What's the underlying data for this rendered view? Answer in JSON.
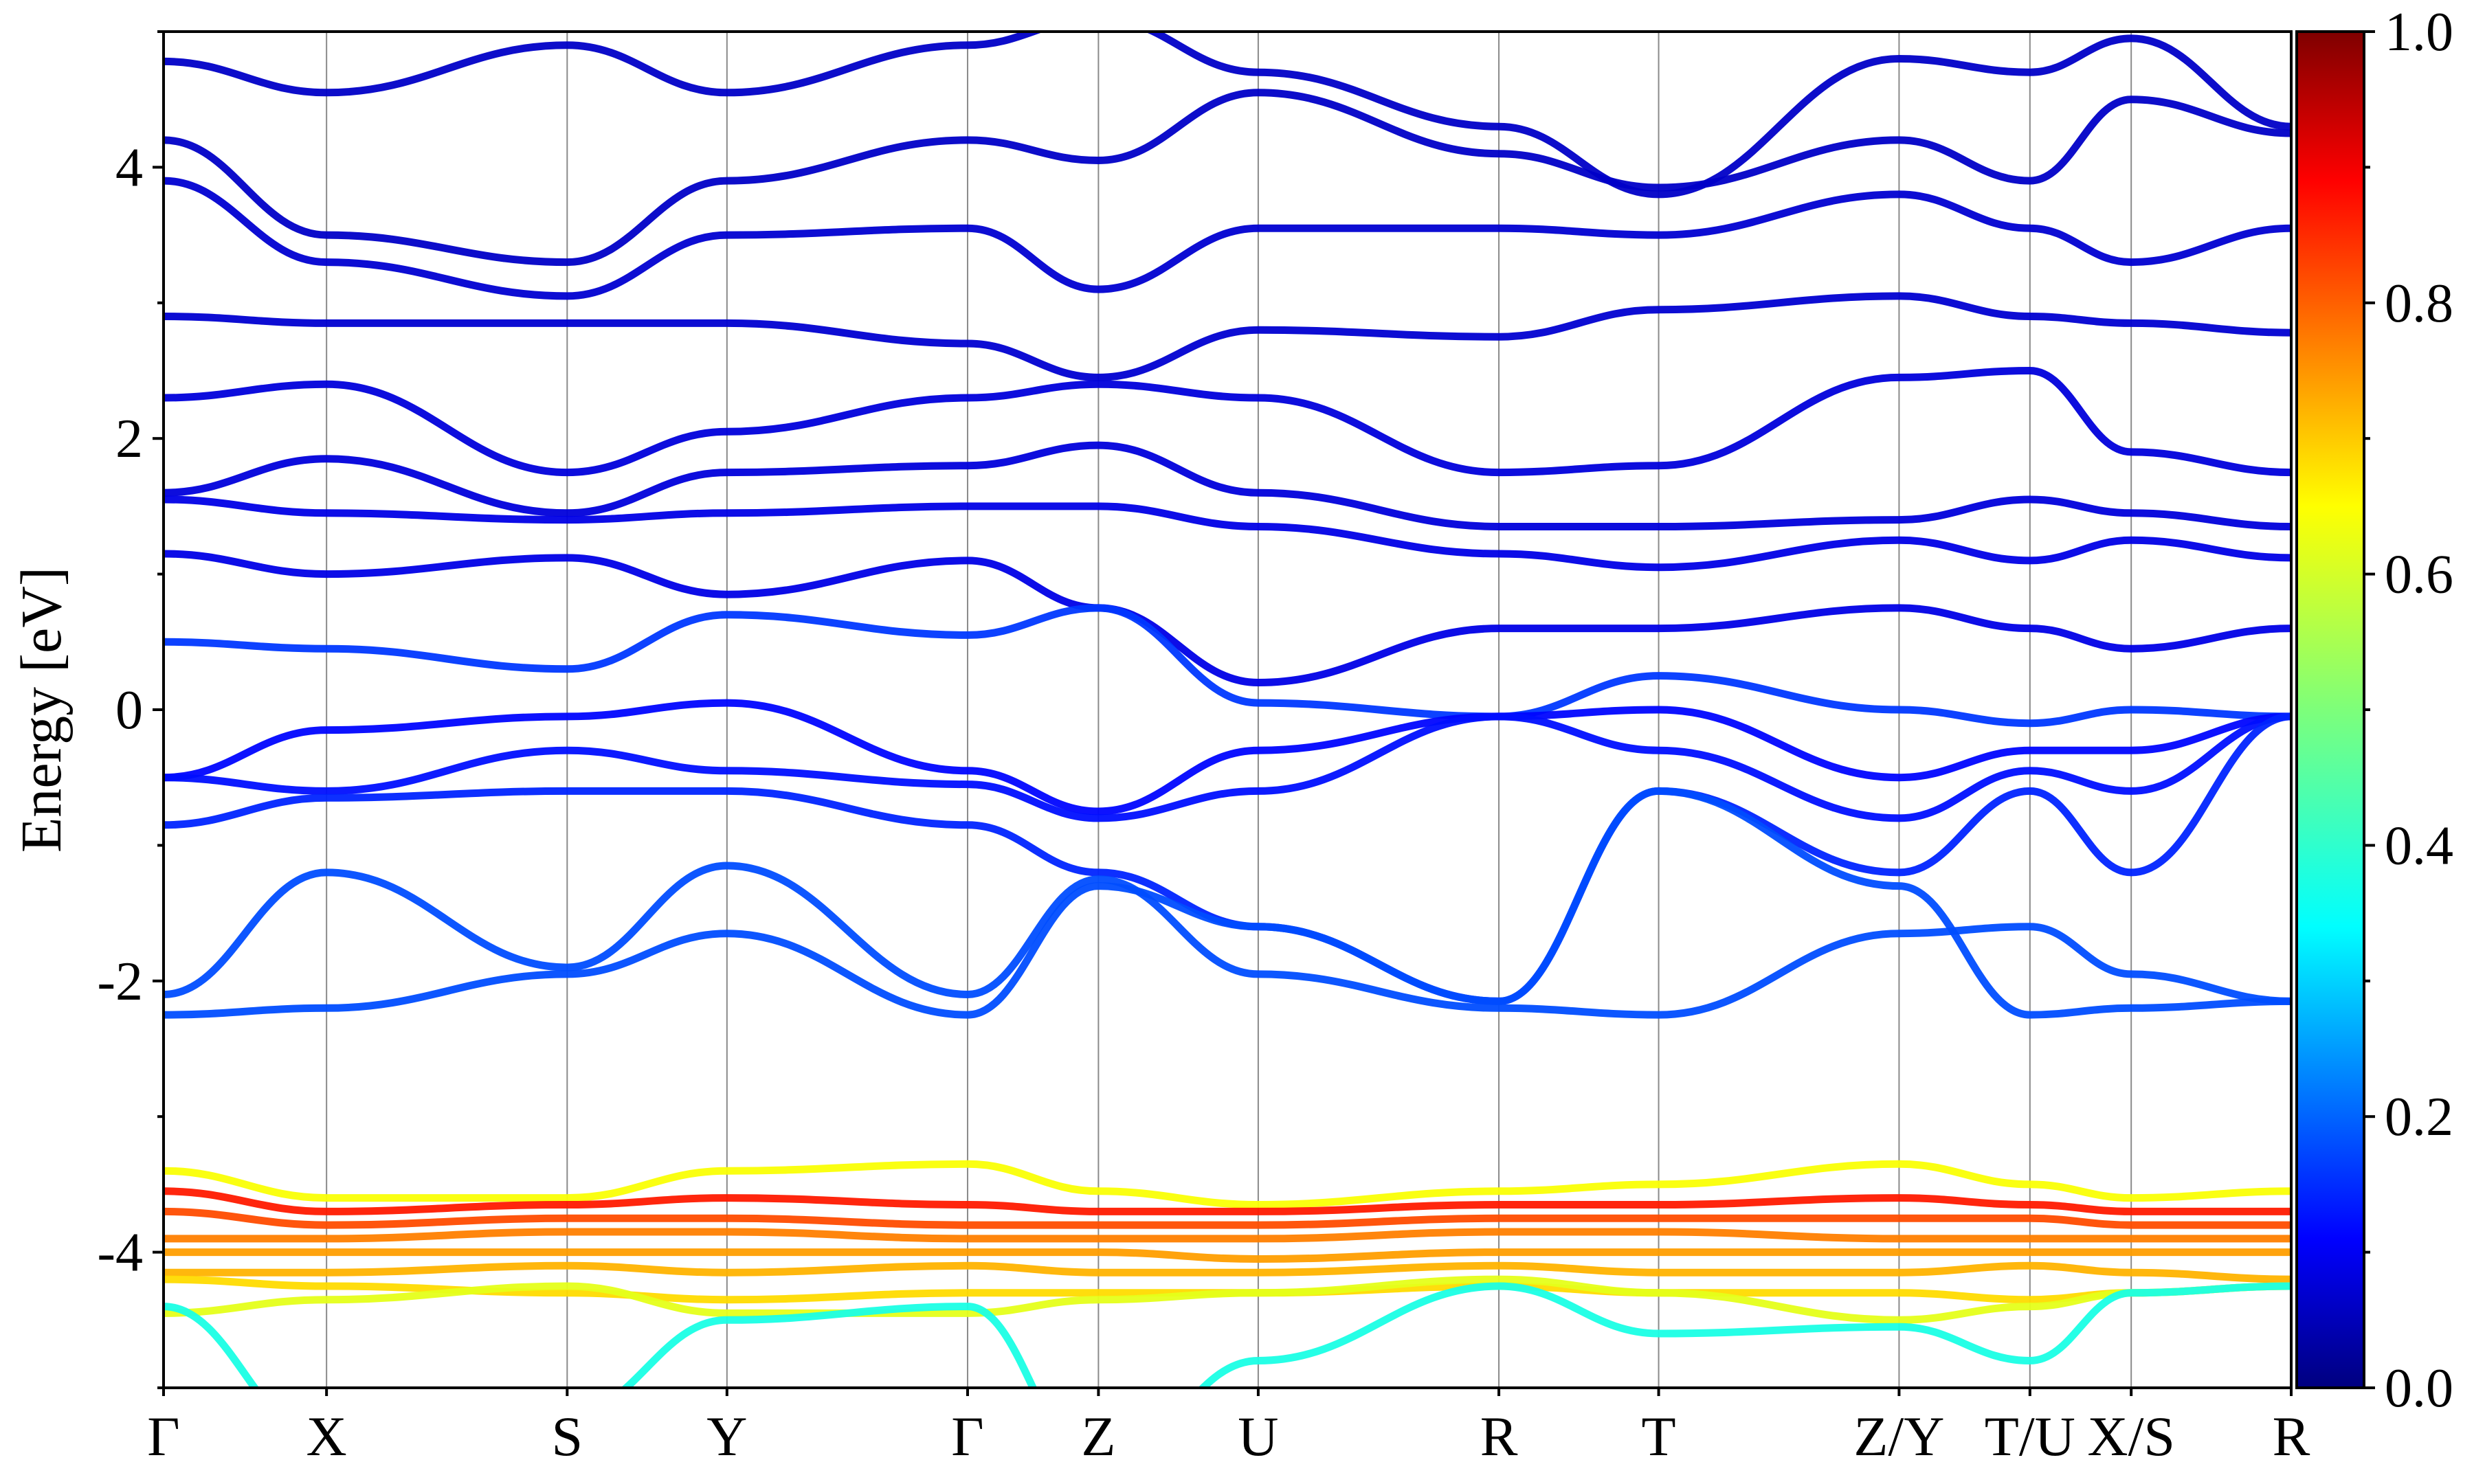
{
  "chart_data": {
    "type": "line",
    "subtype": "electronic band structure (projected weight colormap)",
    "title": "",
    "xlabel": "",
    "ylabel": "Energy [eV]",
    "ylim": [
      -5,
      5
    ],
    "yticks": [
      "4",
      "2",
      "0",
      "-2",
      "-4"
    ],
    "ytick_values": [
      4,
      2,
      0,
      -2,
      -4
    ],
    "grid": "vertical lines at high-symmetry points",
    "k_path_labels": [
      "Γ",
      "X",
      "S",
      "Y",
      "Γ",
      "Z",
      "U",
      "R",
      "T",
      "Z/Y",
      "T/U",
      "X/S",
      "R"
    ],
    "k_path_positions": [
      0,
      0.0766,
      0.1897,
      0.2648,
      0.3779,
      0.4394,
      0.5145,
      0.6276,
      0.7027,
      0.8157,
      0.8772,
      0.9248,
      1.0
    ],
    "colorbar": {
      "colormap": "jet",
      "range": [
        0.0,
        1.0
      ],
      "tick_labels": [
        "1.0",
        "0.8",
        "0.6",
        "0.4",
        "0.2",
        "0.0"
      ],
      "tick_values": [
        1.0,
        0.8,
        0.6,
        0.4,
        0.2,
        0.0
      ]
    },
    "series": [
      {
        "weight": 0.07,
        "values": [
          4.78,
          4.55,
          4.9,
          4.55,
          4.9,
          5.1,
          4.7,
          4.3,
          3.8,
          4.8,
          4.7,
          4.95,
          4.3
        ]
      },
      {
        "weight": 0.07,
        "values": [
          4.2,
          3.5,
          3.3,
          3.9,
          4.2,
          4.05,
          4.55,
          4.1,
          3.85,
          4.2,
          3.9,
          4.5,
          4.25
        ]
      },
      {
        "weight": 0.08,
        "values": [
          3.9,
          3.3,
          3.05,
          3.5,
          3.55,
          3.1,
          3.55,
          3.55,
          3.5,
          3.8,
          3.55,
          3.3,
          3.55
        ]
      },
      {
        "weight": 0.08,
        "values": [
          2.9,
          2.85,
          2.85,
          2.85,
          2.7,
          2.45,
          2.8,
          2.75,
          2.95,
          3.05,
          2.9,
          2.85,
          2.78
        ]
      },
      {
        "weight": 0.09,
        "values": [
          2.3,
          2.4,
          1.75,
          2.05,
          2.3,
          2.4,
          2.3,
          1.75,
          1.8,
          2.45,
          2.5,
          1.9,
          1.75
        ]
      },
      {
        "weight": 0.09,
        "values": [
          1.6,
          1.85,
          1.45,
          1.75,
          1.8,
          1.95,
          1.6,
          1.35,
          1.35,
          1.4,
          1.55,
          1.45,
          1.35
        ]
      },
      {
        "weight": 0.1,
        "values": [
          1.55,
          1.45,
          1.4,
          1.45,
          1.5,
          1.5,
          1.35,
          1.15,
          1.05,
          1.25,
          1.1,
          1.25,
          1.12
        ]
      },
      {
        "weight": 0.1,
        "values": [
          1.15,
          1.0,
          1.12,
          0.85,
          1.1,
          0.75,
          0.2,
          0.6,
          0.6,
          0.75,
          0.6,
          0.45,
          0.6
        ]
      },
      {
        "weight": 0.18,
        "values": [
          0.5,
          0.45,
          0.3,
          0.7,
          0.55,
          0.75,
          0.05,
          -0.05,
          0.25,
          0.0,
          -0.1,
          0.0,
          -0.05
        ]
      },
      {
        "weight": 0.13,
        "values": [
          -0.5,
          -0.15,
          -0.05,
          0.05,
          -0.45,
          -0.75,
          -0.3,
          -0.05,
          0.0,
          -0.5,
          -0.3,
          -0.3,
          -0.05
        ]
      },
      {
        "weight": 0.14,
        "values": [
          -0.5,
          -0.6,
          -0.3,
          -0.45,
          -0.55,
          -0.8,
          -0.6,
          -0.05,
          -0.3,
          -0.8,
          -0.45,
          -0.6,
          -0.05
        ]
      },
      {
        "weight": 0.16,
        "values": [
          -0.85,
          -0.65,
          -0.6,
          -0.6,
          -0.85,
          -1.2,
          -1.6,
          -2.15,
          -0.6,
          -1.2,
          -0.6,
          -1.2,
          -0.05
        ]
      },
      {
        "weight": 0.2,
        "values": [
          -2.1,
          -1.2,
          -1.9,
          -1.15,
          -2.1,
          -1.25,
          -1.95,
          -2.2,
          -2.25,
          -1.65,
          -1.6,
          -1.95,
          -2.15
        ]
      },
      {
        "weight": 0.2,
        "values": [
          -2.25,
          -2.2,
          -1.95,
          -1.65,
          -2.25,
          -1.3,
          -1.6,
          -2.15,
          -0.6,
          -1.3,
          -2.25,
          -2.2,
          -2.15
        ]
      },
      {
        "weight": 0.62,
        "values": [
          -3.4,
          -3.6,
          -3.6,
          -3.4,
          -3.35,
          -3.55,
          -3.65,
          -3.55,
          -3.5,
          -3.35,
          -3.5,
          -3.6,
          -3.55
        ]
      },
      {
        "weight": 0.85,
        "values": [
          -3.55,
          -3.7,
          -3.65,
          -3.6,
          -3.65,
          -3.7,
          -3.7,
          -3.65,
          -3.65,
          -3.6,
          -3.65,
          -3.7,
          -3.7
        ]
      },
      {
        "weight": 0.8,
        "values": [
          -3.7,
          -3.8,
          -3.75,
          -3.75,
          -3.8,
          -3.8,
          -3.8,
          -3.75,
          -3.75,
          -3.75,
          -3.75,
          -3.8,
          -3.8
        ]
      },
      {
        "weight": 0.75,
        "values": [
          -3.9,
          -3.9,
          -3.85,
          -3.85,
          -3.9,
          -3.9,
          -3.9,
          -3.85,
          -3.85,
          -3.9,
          -3.9,
          -3.9,
          -3.9
        ]
      },
      {
        "weight": 0.72,
        "values": [
          -4.0,
          -4.0,
          -4.0,
          -4.0,
          -4.0,
          -4.0,
          -4.05,
          -4.0,
          -4.0,
          -4.0,
          -4.0,
          -4.0,
          -4.0
        ]
      },
      {
        "weight": 0.7,
        "values": [
          -4.15,
          -4.15,
          -4.1,
          -4.15,
          -4.1,
          -4.15,
          -4.15,
          -4.1,
          -4.15,
          -4.15,
          -4.1,
          -4.15,
          -4.2
        ]
      },
      {
        "weight": 0.66,
        "values": [
          -4.2,
          -4.25,
          -4.3,
          -4.35,
          -4.3,
          -4.3,
          -4.3,
          -4.25,
          -4.3,
          -4.3,
          -4.35,
          -4.3,
          -4.25
        ]
      },
      {
        "weight": 0.6,
        "values": [
          -4.45,
          -4.35,
          -4.25,
          -4.45,
          -4.45,
          -4.35,
          -4.3,
          -4.2,
          -4.3,
          -4.5,
          -4.4,
          -4.3,
          -4.25
        ]
      },
      {
        "weight": 0.4,
        "values": [
          -4.4,
          -5.4,
          -5.2,
          -4.5,
          -4.4,
          -5.6,
          -4.8,
          -4.25,
          -4.6,
          -4.55,
          -4.8,
          -4.3,
          -4.25
        ]
      }
    ]
  }
}
